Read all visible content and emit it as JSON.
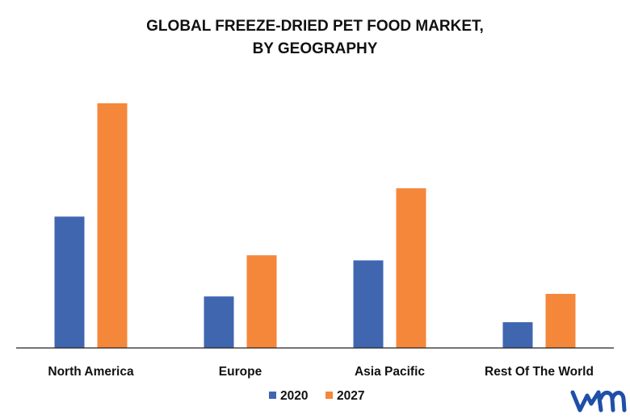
{
  "chart_data": {
    "type": "bar",
    "title": "GLOBAL FREEZE-DRIED PET FOOD MARKET,",
    "subtitle": "BY GEOGRAPHY",
    "categories": [
      "North America",
      "Europe",
      "Asia Pacific",
      "Rest Of The World"
    ],
    "series": [
      {
        "name": "2020",
        "values": [
          5.1,
          2.0,
          3.4,
          1.0
        ],
        "color": "#4066b0"
      },
      {
        "name": "2027",
        "values": [
          9.5,
          3.6,
          6.2,
          2.1
        ],
        "color": "#f5873b"
      }
    ],
    "xlabel": "",
    "ylabel": "",
    "ylim": [
      0,
      10
    ],
    "grid": false,
    "legend": "bottom-center"
  },
  "logo": {
    "text": "vmr",
    "color": "#1f4fa8",
    "icon": "vmr-logo-icon"
  }
}
